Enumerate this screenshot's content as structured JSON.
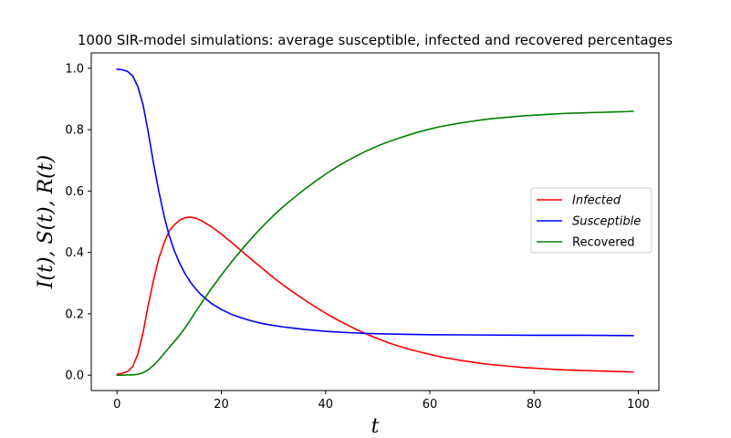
{
  "chart_data": {
    "type": "line",
    "title": "1000 SIR-model simulations: average susceptible, infected and recovered percentages",
    "xlabel": "t",
    "ylabel": "I(t), S(t), R(t)",
    "xlim": [
      -4.95,
      103.95
    ],
    "ylim": [
      -0.05,
      1.05
    ],
    "xticks": [
      0,
      20,
      40,
      60,
      80,
      100
    ],
    "yticks": [
      0.0,
      0.2,
      0.4,
      0.6,
      0.8,
      1.0
    ],
    "xtick_labels": [
      "0",
      "20",
      "40",
      "60",
      "80",
      "100"
    ],
    "ytick_labels": [
      "0.0",
      "0.2",
      "0.4",
      "0.6",
      "0.8",
      "1.0"
    ],
    "grid": false,
    "legend_position": "center-right",
    "series": [
      {
        "name": "Infected",
        "color": "#ff0000",
        "x": [
          0,
          1,
          2,
          3,
          4,
          5,
          6,
          7,
          8,
          9,
          10,
          11,
          12,
          13,
          14,
          15,
          16,
          18,
          20,
          22,
          24,
          26,
          28,
          30,
          32,
          34,
          36,
          38,
          40,
          42,
          44,
          46,
          48,
          50,
          52,
          54,
          56,
          58,
          60,
          62,
          64,
          66,
          68,
          70,
          72,
          74,
          76,
          78,
          80,
          82,
          84,
          86,
          88,
          90,
          92,
          94,
          96,
          98,
          99
        ],
        "y": [
          0.003,
          0.006,
          0.012,
          0.028,
          0.07,
          0.14,
          0.23,
          0.31,
          0.38,
          0.43,
          0.47,
          0.49,
          0.505,
          0.513,
          0.515,
          0.512,
          0.505,
          0.485,
          0.46,
          0.432,
          0.403,
          0.374,
          0.346,
          0.318,
          0.292,
          0.268,
          0.245,
          0.223,
          0.202,
          0.183,
          0.165,
          0.148,
          0.133,
          0.119,
          0.106,
          0.095,
          0.085,
          0.076,
          0.068,
          0.06,
          0.054,
          0.048,
          0.043,
          0.038,
          0.034,
          0.031,
          0.028,
          0.025,
          0.023,
          0.021,
          0.019,
          0.017,
          0.016,
          0.015,
          0.014,
          0.013,
          0.012,
          0.011,
          0.01
        ]
      },
      {
        "name": "Susceptible",
        "color": "#0000ff",
        "x": [
          0,
          1,
          2,
          3,
          4,
          5,
          6,
          7,
          8,
          9,
          10,
          11,
          12,
          13,
          14,
          15,
          16,
          18,
          20,
          22,
          24,
          26,
          28,
          30,
          32,
          34,
          36,
          38,
          40,
          44,
          48,
          52,
          56,
          60,
          70,
          80,
          90,
          99
        ],
        "y": [
          0.997,
          0.995,
          0.99,
          0.975,
          0.94,
          0.88,
          0.79,
          0.69,
          0.6,
          0.52,
          0.455,
          0.405,
          0.365,
          0.332,
          0.305,
          0.283,
          0.264,
          0.235,
          0.214,
          0.198,
          0.186,
          0.176,
          0.168,
          0.162,
          0.157,
          0.153,
          0.149,
          0.146,
          0.143,
          0.139,
          0.136,
          0.134,
          0.133,
          0.132,
          0.131,
          0.13,
          0.13,
          0.129
        ]
      },
      {
        "name": "Recovered",
        "color": "#008000",
        "x": [
          0,
          1,
          2,
          3,
          4,
          5,
          6,
          7,
          8,
          9,
          10,
          11,
          12,
          13,
          14,
          15,
          16,
          18,
          20,
          22,
          24,
          26,
          28,
          30,
          32,
          34,
          36,
          38,
          40,
          42,
          44,
          46,
          48,
          50,
          52,
          54,
          56,
          58,
          60,
          62,
          64,
          66,
          68,
          70,
          72,
          74,
          76,
          78,
          80,
          82,
          84,
          86,
          88,
          90,
          92,
          94,
          96,
          98,
          99
        ],
        "y": [
          0.0,
          0.0,
          0.001,
          0.001,
          0.003,
          0.008,
          0.018,
          0.032,
          0.05,
          0.07,
          0.09,
          0.11,
          0.13,
          0.153,
          0.178,
          0.205,
          0.23,
          0.28,
          0.326,
          0.37,
          0.411,
          0.45,
          0.486,
          0.52,
          0.551,
          0.579,
          0.606,
          0.631,
          0.655,
          0.677,
          0.697,
          0.715,
          0.732,
          0.747,
          0.76,
          0.772,
          0.783,
          0.793,
          0.802,
          0.81,
          0.816,
          0.822,
          0.827,
          0.832,
          0.836,
          0.839,
          0.842,
          0.845,
          0.847,
          0.849,
          0.851,
          0.853,
          0.854,
          0.855,
          0.856,
          0.857,
          0.858,
          0.859,
          0.86
        ]
      }
    ],
    "legend": [
      {
        "label": "Infected",
        "italic": true,
        "color": "#ff0000"
      },
      {
        "label": "Susceptible",
        "italic": true,
        "color": "#0000ff"
      },
      {
        "label": "Recovered",
        "italic": false,
        "color": "#008000"
      }
    ]
  }
}
